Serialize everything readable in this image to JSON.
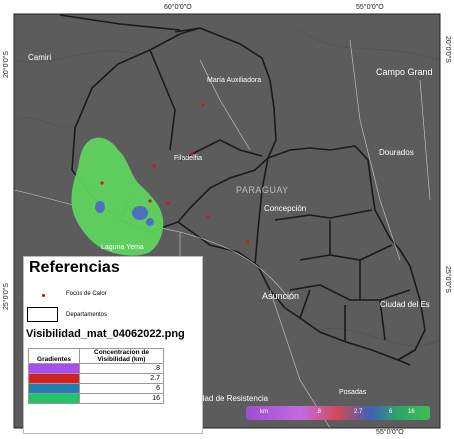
{
  "coords": {
    "top_lon_1": "60°0'0\"O",
    "top_lon_2": "55°0'0\"O",
    "bottom_lon_1": "60°0'0\"O",
    "bottom_lon_2": "55°0'0\"O",
    "left_lat_1": "20°0'0\"S",
    "left_lat_2": "25°0'0\"S",
    "right_lat_1": "20°0'0\"S",
    "right_lat_2": "25°0'0\"S"
  },
  "places": {
    "camiri": "Camiri",
    "maria": "María Auxiliadora",
    "campo": "Campo Grand",
    "dourados": "Dourados",
    "filadelfia": "Filadelfia",
    "paraguay": "PARAGUAY",
    "concepcion": "Concepción",
    "laguna": "Laguna Yema",
    "asuncion": "Asunción",
    "ciudad_este": "Ciudad del Es",
    "resistencia": "dad de Resistencia",
    "posadas": "Posadas"
  },
  "legend": {
    "title": "Referencias",
    "focos": "Focos de Calor",
    "departamentos": "Departamentos",
    "file": "Visibilidad_mat_04062022.png",
    "col1": "Gradientes",
    "col2": "Concentracion de Visibilidad (km)",
    "rows": [
      {
        "value": ".8",
        "color": "#a84ef0"
      },
      {
        "value": "2.7",
        "color": "#d42020"
      },
      {
        "value": "6",
        "color": "#1f7db0"
      },
      {
        "value": "16",
        "color": "#22c466"
      }
    ]
  },
  "colorbar": {
    "unit": "km",
    "t1": ".8",
    "t2": "2.7",
    "t3": "6",
    "t4": "16"
  },
  "colors": {
    "basemap": "#5a5a5a",
    "smoke_green": "#5ed35e",
    "smoke_blue": "#4d6fbf",
    "fire_dot": "#cc1a1a"
  }
}
